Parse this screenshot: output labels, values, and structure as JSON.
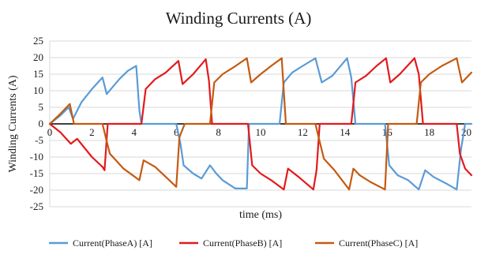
{
  "chart_data": {
    "type": "line",
    "title": "Winding Currents (A)",
    "xlabel": "time (ms)",
    "ylabel": "Winding Currents (A)",
    "xlim": [
      0,
      20
    ],
    "ylim": [
      -25,
      25
    ],
    "xticks": [
      0,
      2,
      4,
      6,
      8,
      10,
      12,
      14,
      16,
      18,
      20
    ],
    "yticks": [
      25,
      20,
      15,
      10,
      5,
      0,
      -5,
      -10,
      -15,
      -20,
      -25
    ],
    "grid": true,
    "legend_position": "bottom",
    "series": [
      {
        "name": "Current(PhaseA) [A]",
        "color": "#5b9bd5",
        "x": [
          0,
          0.5,
          0.9,
          1.1,
          1.5,
          2.0,
          2.5,
          2.7,
          2.9,
          3.3,
          3.7,
          4.1,
          4.25,
          4.35,
          4.45,
          5.0,
          5.5,
          6.0,
          6.2,
          6.35,
          6.8,
          7.2,
          7.6,
          7.9,
          8.2,
          8.8,
          9.35,
          9.45,
          9.6,
          10.0,
          10.5,
          10.9,
          11.1,
          11.5,
          12.0,
          12.6,
          12.9,
          13.4,
          14.1,
          14.3,
          14.5,
          15.0,
          15.5,
          15.9,
          16.1,
          16.5,
          17.0,
          17.5,
          17.8,
          18.2,
          18.8,
          19.3,
          19.5,
          19.7,
          20.0
        ],
        "y": [
          0,
          2.5,
          5.0,
          1.5,
          6.5,
          10.5,
          14.0,
          9.0,
          10.5,
          13.5,
          16.0,
          17.5,
          4.0,
          0,
          0,
          0,
          0,
          0,
          -6.0,
          -12.5,
          -15.0,
          -16.5,
          -12.5,
          -15.0,
          -17.0,
          -19.5,
          -19.5,
          0,
          0,
          0,
          0,
          0,
          12.5,
          15.5,
          17.5,
          19.8,
          12.5,
          14.5,
          19.8,
          14.0,
          0,
          0,
          0,
          0,
          -12.5,
          -15.5,
          -17.0,
          -19.8,
          -14.0,
          -16.0,
          -18.0,
          -19.8,
          -8.0,
          0,
          0
        ]
      },
      {
        "name": "Current(PhaseB) [A]",
        "color": "#e31a1c",
        "x": [
          0,
          0.5,
          1.0,
          1.3,
          2.0,
          2.5,
          2.6,
          2.75,
          3.5,
          4.35,
          4.55,
          5.0,
          5.5,
          6.1,
          6.3,
          6.8,
          7.4,
          7.55,
          7.7,
          8.5,
          9.4,
          9.6,
          10.0,
          10.5,
          11.1,
          11.3,
          11.8,
          12.5,
          12.65,
          12.8,
          13.5,
          14.3,
          14.5,
          15.0,
          15.5,
          15.95,
          16.15,
          16.6,
          17.3,
          17.5,
          17.7,
          18.5,
          19.3,
          19.45,
          19.7,
          20.0
        ],
        "y": [
          0,
          -2.5,
          -6.0,
          -4.5,
          -10.0,
          -13.0,
          -14.0,
          0,
          0,
          0,
          10.5,
          13.5,
          15.5,
          19.0,
          12.0,
          15.0,
          19.5,
          13.0,
          0,
          0,
          0,
          -12.5,
          -15.0,
          -17.0,
          -19.8,
          -13.5,
          -16.0,
          -19.8,
          -14.0,
          0,
          0,
          0,
          12.5,
          14.5,
          17.5,
          19.8,
          12.5,
          15.0,
          19.8,
          15.0,
          0,
          0,
          0,
          -9.0,
          -13.5,
          -15.5
        ]
      },
      {
        "name": "Current(PhaseC) [A]",
        "color": "#c55a11",
        "x": [
          0,
          0.5,
          0.95,
          1.15,
          1.4,
          2.0,
          2.5,
          2.65,
          2.85,
          3.5,
          4.25,
          4.45,
          5.0,
          5.5,
          6.0,
          6.15,
          6.4,
          7.0,
          7.6,
          7.8,
          8.2,
          8.7,
          9.35,
          9.55,
          10.0,
          10.5,
          11.0,
          11.2,
          11.6,
          12.2,
          12.6,
          12.75,
          13.0,
          13.5,
          14.2,
          14.4,
          14.7,
          15.2,
          15.9,
          16.05,
          16.3,
          16.8,
          17.4,
          17.6,
          18.0,
          18.6,
          19.3,
          19.55,
          20.0
        ],
        "y": [
          0,
          3.0,
          6.0,
          0,
          0,
          0,
          0,
          -4.0,
          -9.0,
          -13.5,
          -17.0,
          -11.0,
          -13.0,
          -16.0,
          -19.0,
          -4.0,
          0,
          0,
          0,
          12.5,
          15.0,
          17.0,
          19.8,
          12.5,
          15.0,
          17.5,
          19.8,
          0,
          0,
          0,
          0,
          -4.0,
          -10.5,
          -14.0,
          -19.8,
          -13.5,
          -15.5,
          -17.5,
          -19.8,
          0,
          0,
          0,
          0,
          12.5,
          15.0,
          17.5,
          19.8,
          12.5,
          15.5
        ]
      }
    ]
  }
}
